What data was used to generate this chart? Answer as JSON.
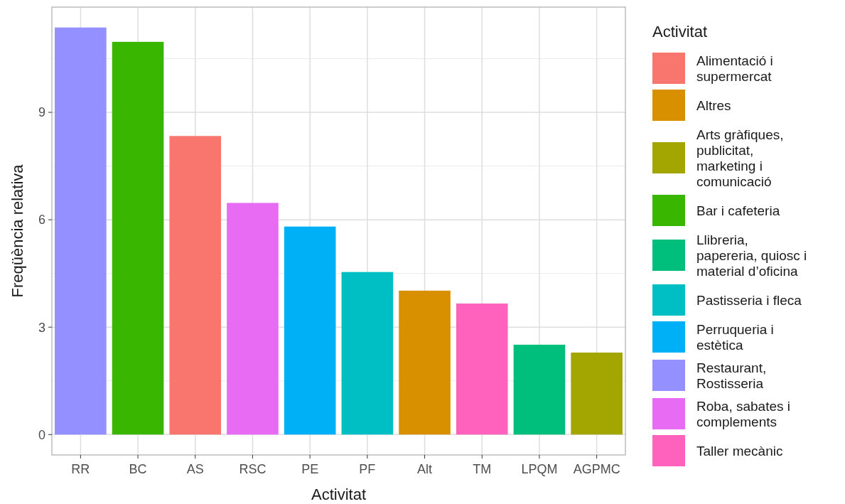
{
  "chart_data": {
    "type": "bar",
    "xlabel": "Activitat",
    "ylabel": "Freqüència relativa",
    "legend_title": "Activitat",
    "legend": "right",
    "grid": true,
    "categories": [
      "RR",
      "BC",
      "AS",
      "RSC",
      "PE",
      "PF",
      "Alt",
      "TM",
      "LPQM",
      "AGPMC"
    ],
    "ylim": [
      -0.57,
      11.94
    ],
    "yticks": [
      0,
      3,
      6,
      9
    ],
    "series": [
      {
        "name": "Alimentació i supermercat",
        "color": "#f8766d",
        "values": [
          null,
          null,
          8.34,
          null,
          null,
          null,
          null,
          null,
          null,
          null
        ]
      },
      {
        "name": "Altres",
        "color": "#d89000",
        "values": [
          null,
          null,
          null,
          null,
          null,
          null,
          4.02,
          null,
          null,
          null
        ]
      },
      {
        "name": "Arts gràfiques, publicitat, marketing i comunicació",
        "color": "#a3a500",
        "values": [
          null,
          null,
          null,
          null,
          null,
          null,
          null,
          null,
          null,
          2.29
        ]
      },
      {
        "name": "Bar i cafeteria",
        "color": "#39b600",
        "values": [
          null,
          10.97,
          null,
          null,
          null,
          null,
          null,
          null,
          null,
          null
        ]
      },
      {
        "name": "Llibreria, papereria, quiosc i material d’oficina",
        "color": "#00bf7d",
        "values": [
          null,
          null,
          null,
          null,
          null,
          null,
          null,
          null,
          2.51,
          null
        ]
      },
      {
        "name": "Pastisseria i fleca",
        "color": "#00bfc4",
        "values": [
          null,
          null,
          null,
          null,
          null,
          4.54,
          null,
          null,
          null,
          null
        ]
      },
      {
        "name": "Perruqueria i estètica",
        "color": "#00b0f6",
        "values": [
          null,
          null,
          null,
          null,
          5.81,
          null,
          null,
          null,
          null,
          null
        ]
      },
      {
        "name": "Restaurant, Rostisseria",
        "color": "#9590ff",
        "values": [
          11.37,
          null,
          null,
          null,
          null,
          null,
          null,
          null,
          null,
          null
        ]
      },
      {
        "name": "Roba, sabates i complements",
        "color": "#e76bf3",
        "values": [
          null,
          null,
          null,
          6.47,
          null,
          null,
          null,
          null,
          null,
          null
        ]
      },
      {
        "name": "Taller mecànic",
        "color": "#ff62bc",
        "values": [
          null,
          null,
          null,
          null,
          null,
          null,
          null,
          3.66,
          null,
          null
        ]
      }
    ]
  }
}
